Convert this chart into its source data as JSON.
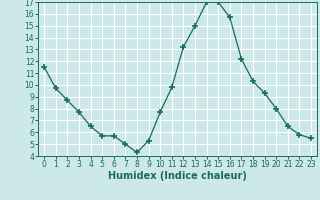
{
  "x": [
    0,
    1,
    2,
    3,
    4,
    5,
    6,
    7,
    8,
    9,
    10,
    11,
    12,
    13,
    14,
    15,
    16,
    17,
    18,
    19,
    20,
    21,
    22,
    23
  ],
  "y": [
    11.5,
    9.7,
    8.7,
    7.7,
    6.5,
    5.7,
    5.7,
    5.0,
    4.3,
    5.3,
    7.7,
    9.8,
    13.2,
    15.0,
    17.0,
    17.0,
    15.7,
    12.2,
    10.3,
    9.3,
    8.0,
    6.5,
    5.8,
    5.5
  ],
  "line_color": "#1a6b5a",
  "marker": "+",
  "marker_size": 4,
  "background_color": "#cce8e8",
  "grid_color": "#b0d8d8",
  "xlabel": "Humidex (Indice chaleur)",
  "xlim": [
    -0.5,
    23.5
  ],
  "ylim": [
    4,
    17
  ],
  "yticks": [
    4,
    5,
    6,
    7,
    8,
    9,
    10,
    11,
    12,
    13,
    14,
    15,
    16,
    17
  ],
  "xticks": [
    0,
    1,
    2,
    3,
    4,
    5,
    6,
    7,
    8,
    9,
    10,
    11,
    12,
    13,
    14,
    15,
    16,
    17,
    18,
    19,
    20,
    21,
    22,
    23
  ],
  "tick_fontsize": 5.5,
  "label_fontsize": 7
}
